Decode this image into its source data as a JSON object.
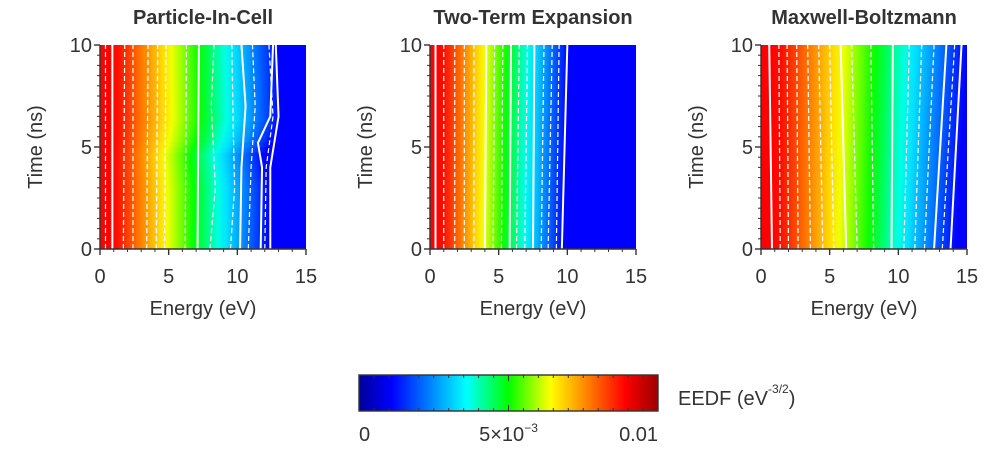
{
  "colorbar": {
    "label_main": "EEDF (eV",
    "label_sup": "-3/2",
    "label_end": ")",
    "ticks": [
      {
        "value": 0,
        "base": "0",
        "exp": ""
      },
      {
        "value": 0.005,
        "base": "5×10",
        "exp": "−3"
      },
      {
        "value": 0.01,
        "base": "0.01",
        "exp": ""
      }
    ],
    "range": [
      0,
      0.01
    ],
    "colormap": "jet"
  },
  "chart_data": [
    {
      "type": "heatmap",
      "title": "Particle-In-Cell",
      "xlabel": "Energy (eV)",
      "ylabel": "Time (ns)",
      "xlim": [
        0,
        15
      ],
      "ylim": [
        0,
        10
      ],
      "xticks": [
        0,
        5,
        10,
        15
      ],
      "yticks": [
        0,
        5,
        10
      ],
      "grid": false,
      "z_description": "EEDF (eV^-3/2), colour scale 0 to 0.01 (clipped above)",
      "boundary_energy": [
        [
          0,
          12.3
        ],
        [
          3,
          12.3
        ],
        [
          4.6,
          11.9
        ],
        [
          5.4,
          12.7
        ],
        [
          6.4,
          13.2
        ],
        [
          8,
          13.1
        ],
        [
          10,
          13.0
        ]
      ],
      "contours_solid": [
        [
          [
            0,
            0.9
          ],
          [
            10,
            0.9
          ]
        ],
        [
          [
            0,
            7.1
          ],
          [
            10,
            7.2
          ]
        ],
        [
          [
            0,
            10.2
          ],
          [
            4,
            10.3
          ],
          [
            7,
            10.6
          ],
          [
            10,
            10.3
          ]
        ],
        [
          [
            0,
            11.7
          ],
          [
            4,
            11.8
          ],
          [
            5.2,
            11.5
          ],
          [
            6.5,
            12.4
          ],
          [
            10,
            12.6
          ]
        ],
        [
          [
            0,
            12.4
          ],
          [
            4,
            12.4
          ],
          [
            6.5,
            13.0
          ],
          [
            10,
            12.8
          ]
        ]
      ],
      "contours_dashed": [
        [
          [
            0,
            0.4
          ],
          [
            10,
            0.4
          ]
        ],
        [
          [
            0,
            1.7
          ],
          [
            10,
            1.8
          ]
        ],
        [
          [
            0,
            2.4
          ],
          [
            10,
            2.4
          ]
        ],
        [
          [
            0,
            3.4
          ],
          [
            10,
            3.5
          ]
        ],
        [
          [
            0,
            4.1
          ],
          [
            10,
            4.2
          ]
        ],
        [
          [
            0,
            4.7
          ],
          [
            10,
            4.8
          ]
        ],
        [
          [
            0,
            6.2
          ],
          [
            10,
            6.3
          ]
        ],
        [
          [
            0,
            8.0
          ],
          [
            3,
            8.4
          ],
          [
            7,
            8.1
          ],
          [
            10,
            8.3
          ]
        ],
        [
          [
            0,
            9.5
          ],
          [
            3,
            9.8
          ],
          [
            6,
            9.7
          ],
          [
            10,
            9.6
          ]
        ],
        [
          [
            0,
            10.8
          ],
          [
            4,
            11.0
          ],
          [
            7,
            11.3
          ],
          [
            10,
            11.1
          ]
        ],
        [
          [
            0,
            12.0
          ],
          [
            4,
            12.1
          ],
          [
            6.5,
            12.6
          ],
          [
            10,
            12.3
          ]
        ]
      ]
    },
    {
      "type": "heatmap",
      "title": "Two-Term Expansion",
      "xlabel": "Energy (eV)",
      "ylabel": "Time (ns)",
      "xlim": [
        0,
        15
      ],
      "ylim": [
        0,
        10
      ],
      "xticks": [
        0,
        5,
        10,
        15
      ],
      "yticks": [
        0,
        5,
        10
      ],
      "grid": false,
      "z_description": "EEDF (eV^-3/2), colour scale 0 to 0.01 (clipped above)",
      "boundary_energy": [
        [
          0,
          9.7
        ],
        [
          10,
          10.1
        ]
      ],
      "contours_solid": [
        [
          [
            0,
            0.4
          ],
          [
            10,
            0.4
          ]
        ],
        [
          [
            0,
            4.0
          ],
          [
            10,
            4.1
          ]
        ],
        [
          [
            0,
            5.8
          ],
          [
            10,
            5.9
          ]
        ],
        [
          [
            0,
            7.5
          ],
          [
            10,
            7.6
          ]
        ],
        [
          [
            0,
            9.6
          ],
          [
            10,
            10.0
          ]
        ]
      ],
      "contours_dashed": [
        [
          [
            0,
            1.0
          ],
          [
            10,
            1.0
          ]
        ],
        [
          [
            0,
            1.8
          ],
          [
            10,
            1.8
          ]
        ],
        [
          [
            0,
            2.5
          ],
          [
            10,
            2.5
          ]
        ],
        [
          [
            0,
            3.2
          ],
          [
            10,
            3.2
          ]
        ],
        [
          [
            0,
            4.6
          ],
          [
            10,
            4.7
          ]
        ],
        [
          [
            0,
            5.2
          ],
          [
            10,
            5.3
          ]
        ],
        [
          [
            0,
            6.3
          ],
          [
            10,
            6.5
          ]
        ],
        [
          [
            0,
            6.9
          ],
          [
            10,
            7.1
          ]
        ],
        [
          [
            0,
            8.1
          ],
          [
            10,
            8.3
          ]
        ],
        [
          [
            0,
            8.6
          ],
          [
            10,
            8.9
          ]
        ],
        [
          [
            0,
            9.2
          ],
          [
            10,
            9.4
          ]
        ]
      ]
    },
    {
      "type": "heatmap",
      "title": "Maxwell-Boltzmann",
      "xlabel": "Energy (eV)",
      "ylabel": "Time (ns)",
      "xlim": [
        0,
        15
      ],
      "ylim": [
        0,
        10
      ],
      "xticks": [
        0,
        5,
        10,
        15
      ],
      "yticks": [
        0,
        5,
        10
      ],
      "grid": false,
      "z_description": "EEDF (eV^-3/2), colour scale 0 to 0.01 (clipped above)",
      "boundary_energy": [
        [
          0,
          14.2
        ],
        [
          10,
          15
        ]
      ],
      "contours_solid": [
        [
          [
            0,
            0.8
          ],
          [
            10,
            0.6
          ]
        ],
        [
          [
            0,
            6.2
          ],
          [
            10,
            5.8
          ]
        ],
        [
          [
            0,
            9.5
          ],
          [
            10,
            9.6
          ]
        ],
        [
          [
            0,
            12.6
          ],
          [
            10,
            13.5
          ]
        ],
        [
          [
            0,
            13.8
          ],
          [
            10,
            14.6
          ]
        ]
      ],
      "contours_dashed": [
        [
          [
            0,
            1.4
          ],
          [
            10,
            1.3
          ]
        ],
        [
          [
            0,
            2.0
          ],
          [
            10,
            1.9
          ]
        ],
        [
          [
            0,
            2.7
          ],
          [
            10,
            2.6
          ]
        ],
        [
          [
            0,
            3.6
          ],
          [
            10,
            3.4
          ]
        ],
        [
          [
            0,
            4.5
          ],
          [
            10,
            4.2
          ]
        ],
        [
          [
            0,
            5.3
          ],
          [
            10,
            5.0
          ]
        ],
        [
          [
            0,
            7.0
          ],
          [
            10,
            6.6
          ]
        ],
        [
          [
            0,
            8.2
          ],
          [
            10,
            8.0
          ]
        ],
        [
          [
            0,
            10.4
          ],
          [
            10,
            10.8
          ]
        ],
        [
          [
            0,
            11.2
          ],
          [
            10,
            11.7
          ]
        ],
        [
          [
            0,
            11.9
          ],
          [
            10,
            12.6
          ]
        ],
        [
          [
            0,
            13.2
          ],
          [
            10,
            14.1
          ]
        ]
      ]
    }
  ]
}
